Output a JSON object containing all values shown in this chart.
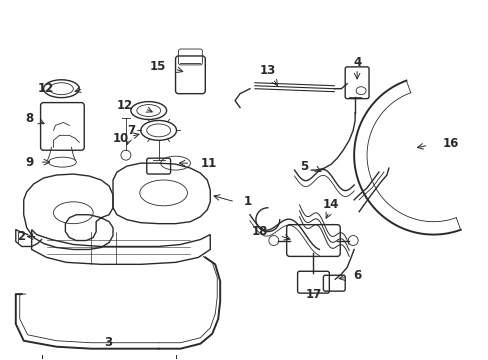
{
  "bg_color": "#ffffff",
  "lc": "#2a2a2a",
  "lw": 1.0,
  "lwt": 1.4,
  "lwth": 0.6,
  "fs": 8.5
}
